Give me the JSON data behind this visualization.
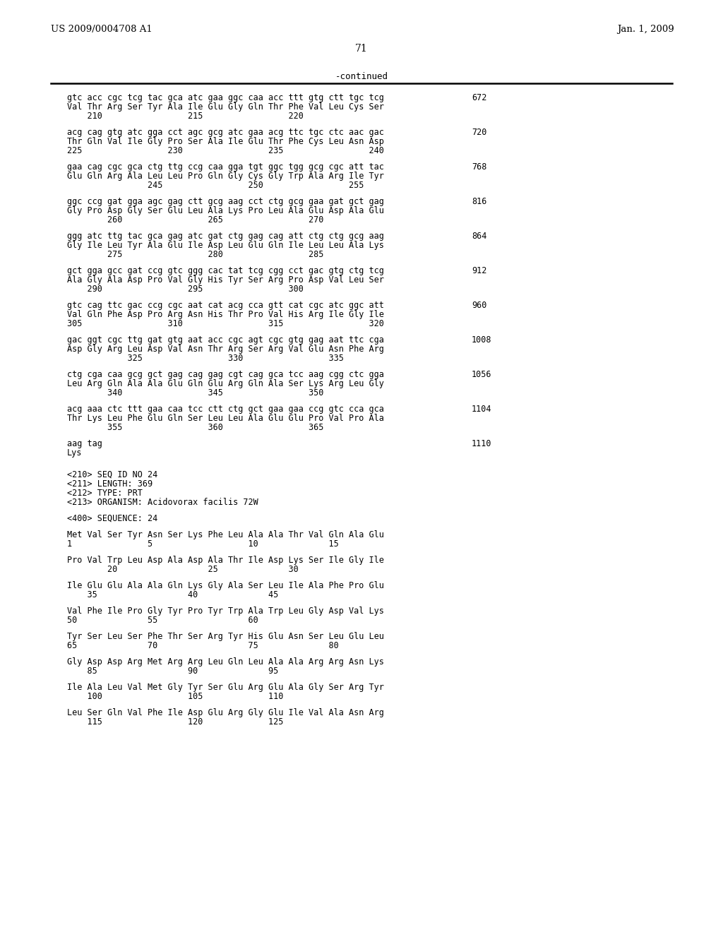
{
  "header_left": "US 2009/0004708 A1",
  "header_right": "Jan. 1, 2009",
  "page_number": "71",
  "continued_label": "-continued",
  "bg_color": "#ffffff",
  "text_color": "#000000",
  "dna_blocks": [
    {
      "dna": "gtc acc cgc tcg tac gca atc gaa ggc caa acc ttt gtg ctt tgc tcg",
      "num": "672",
      "aa": "Val Thr Arg Ser Tyr Ala Ile Glu Gly Gln Thr Phe Val Leu Cys Ser",
      "pos": "    210                 215                 220"
    },
    {
      "dna": "acg cag gtg atc gga cct agc gcg atc gaa acg ttc tgc ctc aac gac",
      "num": "720",
      "aa": "Thr Gln Val Ile Gly Pro Ser Ala Ile Glu Thr Phe Cys Leu Asn Asp",
      "pos": "225                 230                 235                 240"
    },
    {
      "dna": "gaa cag cgc gca ctg ttg ccg caa gga tgt ggc tgg gcg cgc att tac",
      "num": "768",
      "aa": "Glu Gln Arg Ala Leu Leu Pro Gln Gly Cys Gly Trp Ala Arg Ile Tyr",
      "pos": "                245                 250                 255"
    },
    {
      "dna": "ggc ccg gat gga agc gag ctt gcg aag cct ctg gcg gaa gat gct gag",
      "num": "816",
      "aa": "Gly Pro Asp Gly Ser Glu Leu Ala Lys Pro Leu Ala Glu Asp Ala Glu",
      "pos": "        260                 265                 270"
    },
    {
      "dna": "ggg atc ttg tac gca gag atc gat ctg gag cag att ctg ctg gcg aag",
      "num": "864",
      "aa": "Gly Ile Leu Tyr Ala Glu Ile Asp Leu Glu Gln Ile Leu Leu Ala Lys",
      "pos": "        275                 280                 285"
    },
    {
      "dna": "gct gga gcc gat ccg gtc ggg cac tat tcg cgg cct gac gtg ctg tcg",
      "num": "912",
      "aa": "Ala Gly Ala Asp Pro Val Gly His Tyr Ser Arg Pro Asp Val Leu Ser",
      "pos": "    290                 295                 300"
    },
    {
      "dna": "gtc cag ttc gac ccg cgc aat cat acg cca gtt cat cgc atc ggc att",
      "num": "960",
      "aa": "Val Gln Phe Asp Pro Arg Asn His Thr Pro Val His Arg Ile Gly Ile",
      "pos": "305                 310                 315                 320"
    },
    {
      "dna": "gac ggt cgc ttg gat gtg aat acc cgc agt cgc gtg gag aat ttc cga",
      "num": "1008",
      "aa": "Asp Gly Arg Leu Asp Val Asn Thr Arg Ser Arg Val Glu Asn Phe Arg",
      "pos": "            325                 330                 335"
    },
    {
      "dna": "ctg cga caa gcg gct gag cag gag cgt cag gca tcc aag cgg ctc gga",
      "num": "1056",
      "aa": "Leu Arg Gln Ala Ala Glu Gln Glu Arg Gln Ala Ser Lys Arg Leu Gly",
      "pos": "        340                 345                 350"
    },
    {
      "dna": "acg aaa ctc ttt gaa caa tcc ctt ctg gct gaa gaa ccg gtc cca gca",
      "num": "1104",
      "aa": "Thr Lys Leu Phe Glu Gln Ser Leu Leu Ala Glu Glu Pro Val Pro Ala",
      "pos": "        355                 360                 365"
    }
  ],
  "short_block": {
    "dna": "aag tag",
    "num": "1110",
    "aa": "Lys"
  },
  "meta_lines": [
    "<210> SEQ ID NO 24",
    "<211> LENGTH: 369",
    "<212> TYPE: PRT",
    "<213> ORGANISM: Acidovorax facilis 72W"
  ],
  "seq400": "<400> SEQUENCE: 24",
  "prt_blocks": [
    {
      "aa": "Met Val Ser Tyr Asn Ser Lys Phe Leu Ala Ala Thr Val Gln Ala Glu",
      "pos": "1               5                   10              15"
    },
    {
      "aa": "Pro Val Trp Leu Asp Ala Asp Ala Thr Ile Asp Lys Ser Ile Gly Ile",
      "pos": "        20                  25              30"
    },
    {
      "aa": "Ile Glu Glu Ala Ala Gln Lys Gly Ala Ser Leu Ile Ala Phe Pro Glu",
      "pos": "    35                  40              45"
    },
    {
      "aa": "Val Phe Ile Pro Gly Tyr Pro Tyr Trp Ala Trp Leu Gly Asp Val Lys",
      "pos": "50              55                  60"
    },
    {
      "aa": "Tyr Ser Leu Ser Phe Thr Ser Arg Tyr His Glu Asn Ser Leu Glu Leu",
      "pos": "65              70                  75              80"
    },
    {
      "aa": "Gly Asp Asp Arg Met Arg Arg Leu Gln Leu Ala Ala Arg Arg Asn Lys",
      "pos": "    85                  90              95"
    },
    {
      "aa": "Ile Ala Leu Val Met Gly Tyr Ser Glu Arg Glu Ala Gly Ser Arg Tyr",
      "pos": "    100                 105             110"
    },
    {
      "aa": "Leu Ser Gln Val Phe Ile Asp Glu Arg Gly Glu Ile Val Ala Asn Arg",
      "pos": "    115                 120             125"
    }
  ]
}
